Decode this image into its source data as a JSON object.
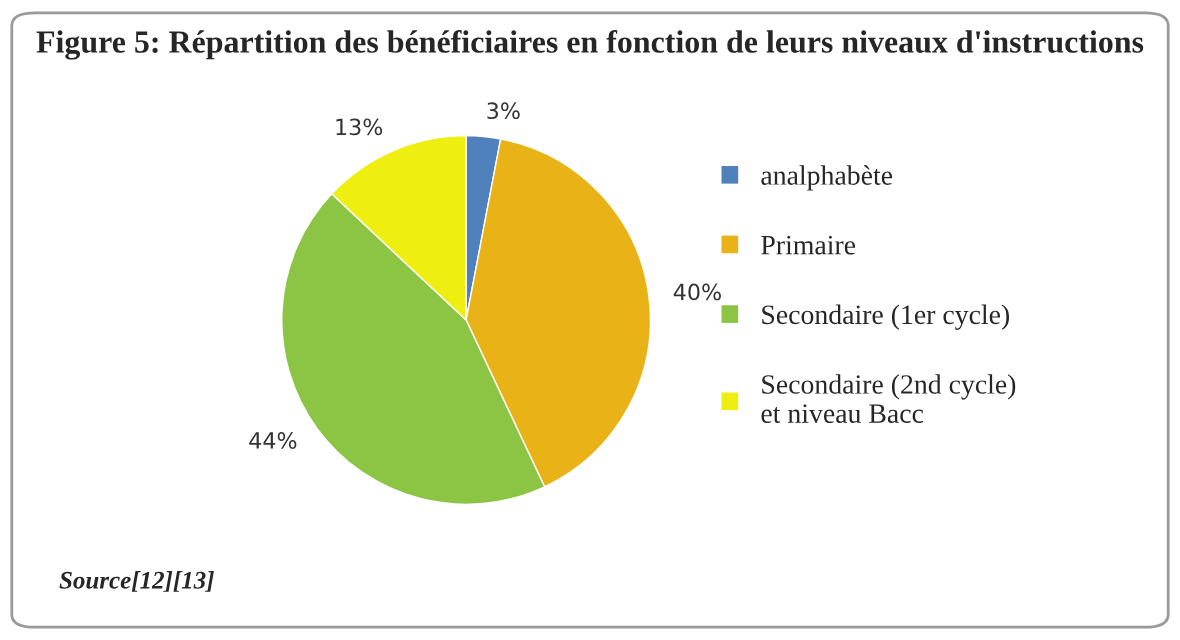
{
  "chart_data": {
    "type": "pie",
    "title": "Figure 5: Répartition des bénéficiaires en fonction de leurs niveaux d'instructions",
    "categories": [
      "analphabète",
      "Primaire",
      "Secondaire (1er cycle)",
      "Secondaire (2nd cycle) et niveau Bacc"
    ],
    "values": [
      3,
      40,
      44,
      13
    ],
    "colors": [
      "#4f81bd",
      "#e9b318",
      "#8cc443",
      "#eeee10"
    ],
    "value_labels": [
      "3%",
      "40%",
      "44%",
      "13%"
    ],
    "legend": "right",
    "annotations": [
      "Source[12][13]"
    ]
  }
}
